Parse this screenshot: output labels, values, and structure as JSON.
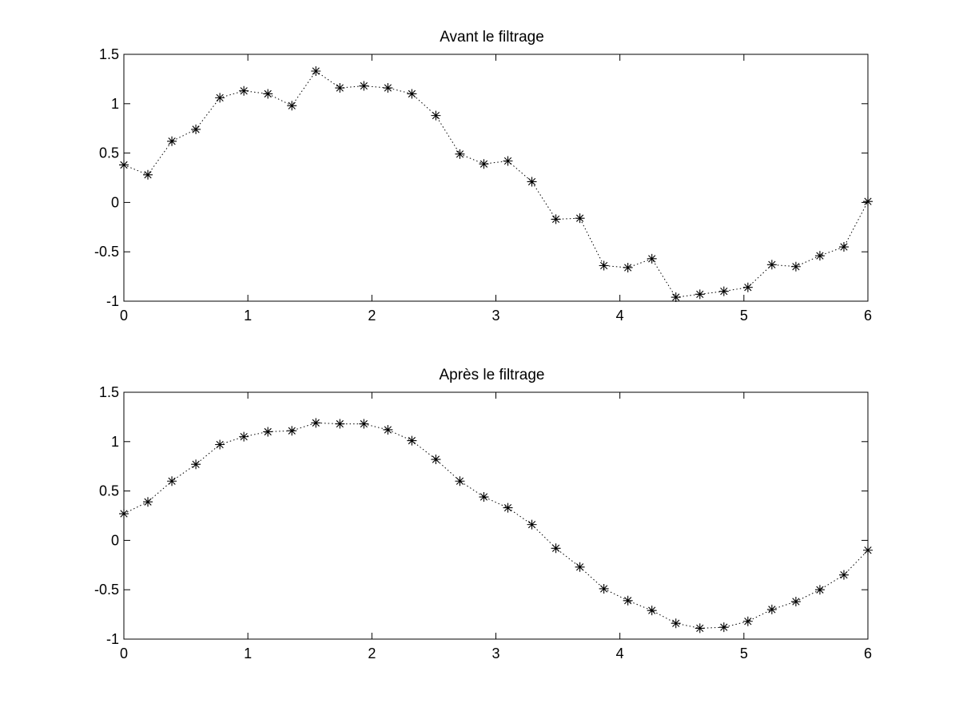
{
  "chart_data": [
    {
      "type": "line",
      "title": "Avant le filtrage",
      "xlabel": "",
      "ylabel": "",
      "xlim": [
        0,
        6
      ],
      "ylim": [
        -1,
        1.5
      ],
      "xticks": [
        "0",
        "1",
        "2",
        "3",
        "4",
        "5",
        "6"
      ],
      "yticks": [
        "-1",
        "-0.5",
        "0",
        "0.5",
        "1",
        "1.5"
      ],
      "grid": false,
      "line_style": "dotted",
      "marker": "asterisk",
      "color": "#000000",
      "x": [
        0,
        0.1935,
        0.3871,
        0.5806,
        0.7742,
        0.9677,
        1.1613,
        1.3548,
        1.5484,
        1.7419,
        1.9355,
        2.129,
        2.3226,
        2.5161,
        2.7097,
        2.9032,
        3.0968,
        3.2903,
        3.4839,
        3.6774,
        3.871,
        4.0645,
        4.2581,
        4.4516,
        4.6452,
        4.8387,
        5.0323,
        5.2258,
        5.4194,
        5.6129,
        5.8065,
        6
      ],
      "y": [
        0.38,
        0.28,
        0.62,
        0.74,
        1.06,
        1.13,
        1.1,
        0.98,
        1.33,
        1.16,
        1.18,
        1.16,
        1.1,
        0.88,
        0.49,
        0.39,
        0.42,
        0.21,
        -0.17,
        -0.16,
        -0.64,
        -0.66,
        -0.57,
        -0.96,
        -0.93,
        -0.9,
        -0.86,
        -0.63,
        -0.65,
        -0.54,
        -0.45,
        0.01
      ]
    },
    {
      "type": "line",
      "title": "Après le filtrage",
      "xlabel": "",
      "ylabel": "",
      "xlim": [
        0,
        6
      ],
      "ylim": [
        -1,
        1.5
      ],
      "xticks": [
        "0",
        "1",
        "2",
        "3",
        "4",
        "5",
        "6"
      ],
      "yticks": [
        "-1",
        "-0.5",
        "0",
        "0.5",
        "1",
        "1.5"
      ],
      "grid": false,
      "line_style": "dotted",
      "marker": "asterisk",
      "color": "#000000",
      "x": [
        0,
        0.1935,
        0.3871,
        0.5806,
        0.7742,
        0.9677,
        1.1613,
        1.3548,
        1.5484,
        1.7419,
        1.9355,
        2.129,
        2.3226,
        2.5161,
        2.7097,
        2.9032,
        3.0968,
        3.2903,
        3.4839,
        3.6774,
        3.871,
        4.0645,
        4.2581,
        4.4516,
        4.6452,
        4.8387,
        5.0323,
        5.2258,
        5.4194,
        5.6129,
        5.8065,
        6
      ],
      "y": [
        0.27,
        0.39,
        0.6,
        0.77,
        0.97,
        1.05,
        1.1,
        1.11,
        1.19,
        1.18,
        1.18,
        1.12,
        1.01,
        0.82,
        0.6,
        0.44,
        0.33,
        0.16,
        -0.08,
        -0.27,
        -0.49,
        -0.61,
        -0.71,
        -0.84,
        -0.89,
        -0.88,
        -0.82,
        -0.7,
        -0.62,
        -0.5,
        -0.35,
        -0.1
      ]
    }
  ]
}
